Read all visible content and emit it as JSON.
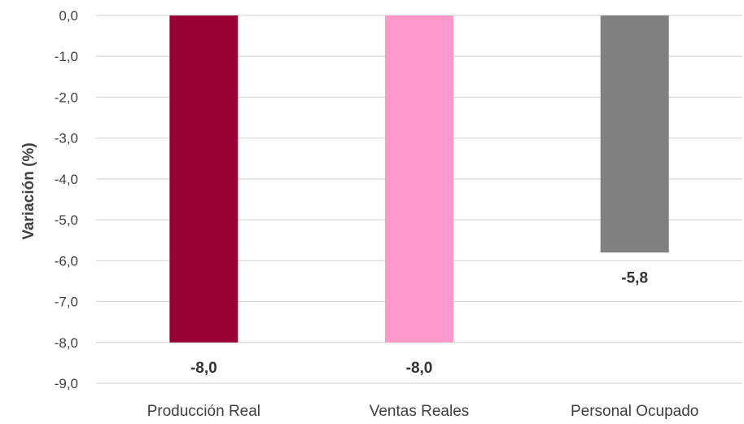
{
  "chart_data": {
    "type": "bar",
    "categories": [
      "Producción Real",
      "Ventas Reales",
      "Personal Ocupado"
    ],
    "values": [
      -8.0,
      -8.0,
      -5.8
    ],
    "data_labels": [
      "-8,0",
      "-8,0",
      "-5,8"
    ],
    "colors": [
      "#990033",
      "#FF99CC",
      "#808080"
    ],
    "title": "",
    "xlabel": "",
    "ylabel": "Variación (%)",
    "ylim": [
      -9.0,
      0.0
    ],
    "yticks": [
      0,
      -1,
      -2,
      -3,
      -4,
      -5,
      -6,
      -7,
      -8,
      -9
    ],
    "ytick_labels": [
      "0,0",
      "-1,0",
      "-2,0",
      "-3,0",
      "-4,0",
      "-5,0",
      "-6,0",
      "-7,0",
      "-8,0",
      "-9,0"
    ],
    "grid": true,
    "legend": "none"
  }
}
